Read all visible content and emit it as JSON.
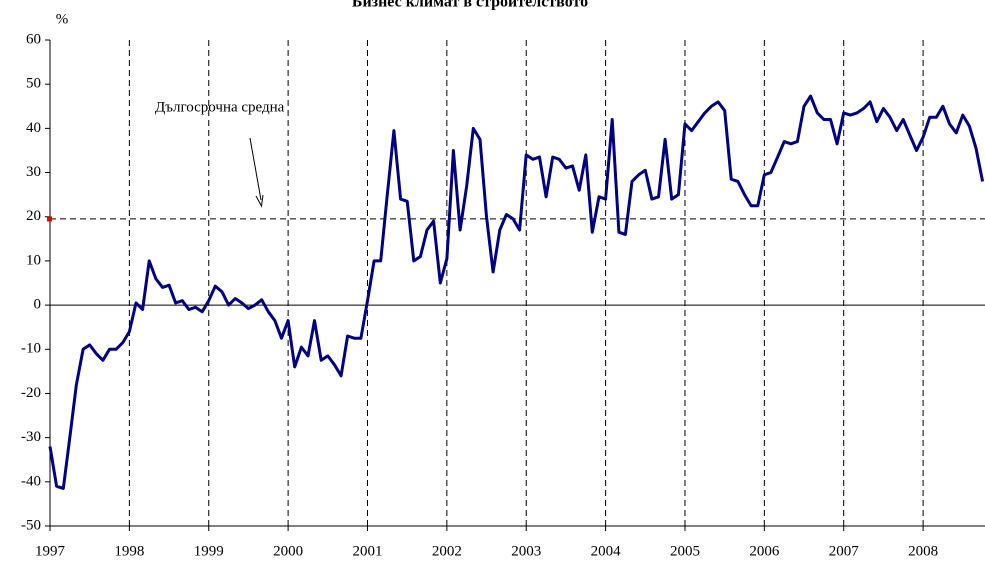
{
  "chart_data": {
    "type": "line",
    "title": "Бизнес климат в строителството",
    "ylabel": "%",
    "color": "#000080",
    "x": [
      1997,
      1997.083,
      1997.167,
      1997.25,
      1997.333,
      1997.417,
      1997.5,
      1997.583,
      1997.667,
      1997.75,
      1997.833,
      1997.917,
      1998,
      1998.083,
      1998.167,
      1998.25,
      1998.333,
      1998.417,
      1998.5,
      1998.583,
      1998.667,
      1998.75,
      1998.833,
      1998.917,
      1999,
      1999.083,
      1999.167,
      1999.25,
      1999.333,
      1999.417,
      1999.5,
      1999.583,
      1999.667,
      1999.75,
      1999.833,
      1999.917,
      2000,
      2000.083,
      2000.167,
      2000.25,
      2000.333,
      2000.417,
      2000.5,
      2000.583,
      2000.667,
      2000.75,
      2000.833,
      2000.917,
      2001,
      2001.083,
      2001.167,
      2001.25,
      2001.333,
      2001.417,
      2001.5,
      2001.583,
      2001.667,
      2001.75,
      2001.833,
      2001.917,
      2002,
      2002.083,
      2002.167,
      2002.25,
      2002.333,
      2002.417,
      2002.5,
      2002.583,
      2002.667,
      2002.75,
      2002.833,
      2002.917,
      2003,
      2003.083,
      2003.167,
      2003.25,
      2003.333,
      2003.417,
      2003.5,
      2003.583,
      2003.667,
      2003.75,
      2003.833,
      2003.917,
      2004,
      2004.083,
      2004.167,
      2004.25,
      2004.333,
      2004.417,
      2004.5,
      2004.583,
      2004.667,
      2004.75,
      2004.833,
      2004.917,
      2005,
      2005.083,
      2005.167,
      2005.25,
      2005.333,
      2005.417,
      2005.5,
      2005.583,
      2005.667,
      2005.75,
      2005.833,
      2005.917,
      2006,
      2006.083,
      2006.167,
      2006.25,
      2006.333,
      2006.417,
      2006.5,
      2006.583,
      2006.667,
      2006.75,
      2006.833,
      2006.917,
      2007,
      2007.083,
      2007.167,
      2007.25,
      2007.333,
      2007.417,
      2007.5,
      2007.583,
      2007.667,
      2007.75,
      2007.833,
      2007.917,
      2008,
      2008.083,
      2008.167,
      2008.25,
      2008.333,
      2008.417,
      2008.5,
      2008.583,
      2008.667,
      2008.75
    ],
    "values": [
      -32,
      -41,
      -41.5,
      -30,
      -18,
      -10,
      -9,
      -11,
      -12.5,
      -10,
      -10,
      -8.5,
      -6,
      0.5,
      -1,
      10,
      6,
      4,
      4.5,
      0.5,
      1,
      -1,
      -0.5,
      -1.5,
      1,
      4.3,
      3,
      0,
      1.5,
      0.5,
      -0.8,
      0,
      1.2,
      -1.5,
      -3.5,
      -7.5,
      -3.5,
      -14,
      -9.5,
      -11.5,
      -3.5,
      -12.5,
      -11.5,
      -13.5,
      -16,
      -7,
      -7.5,
      -7.5,
      1,
      10,
      10,
      25,
      39.5,
      24,
      23.5,
      10,
      11,
      17,
      19,
      5,
      10.5,
      35,
      17,
      27,
      40,
      37.5,
      20,
      7.5,
      17,
      20.5,
      19.5,
      17,
      34,
      33,
      33.5,
      24.5,
      33.5,
      33,
      31,
      31.5,
      26,
      34,
      16.5,
      24.5,
      24,
      42,
      16.5,
      16,
      28,
      29.5,
      30.5,
      24,
      24.5,
      37.5,
      24,
      25,
      41,
      39.5,
      41.5,
      43.5,
      45,
      46,
      44,
      28.5,
      28,
      25,
      22.5,
      22.5,
      29.5,
      30,
      33.5,
      37,
      36.5,
      37,
      45,
      47.3,
      43.5,
      42,
      42,
      36.5,
      43.5,
      43,
      43.5,
      44.5,
      46,
      41.5,
      44.5,
      42.5,
      39.5,
      42,
      38.5,
      35,
      38,
      42.5,
      42.5,
      45,
      41,
      39,
      43,
      40.5,
      35.5,
      28
    ],
    "annotation": {
      "text": "Дългосрочна средна",
      "value": 19.5
    },
    "xlim": [
      1997,
      2008.78
    ],
    "xticks": [
      1997,
      1998,
      1999,
      2000,
      2001,
      2002,
      2003,
      2004,
      2005,
      2006,
      2007,
      2008
    ],
    "ylim": [
      -50,
      60
    ],
    "yticks": [
      -50,
      -40,
      -30,
      -20,
      -10,
      0,
      10,
      20,
      30,
      40,
      50,
      60
    ],
    "grid": true
  }
}
